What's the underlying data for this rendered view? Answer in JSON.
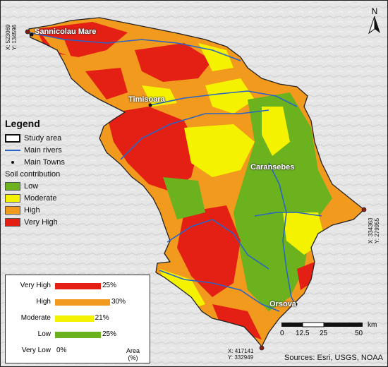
{
  "towns": {
    "sannicolau": "Sannicolau Mare",
    "timisoara": "Timisoara",
    "caransebes": "Caransebes",
    "orsova": "Orsova"
  },
  "coords": {
    "nw_x": "X: 523069",
    "nw_y": "Y: 134596",
    "e_x": "X: 334363",
    "e_y": "Y: 279955",
    "s_x": "X: 417141",
    "s_y": "Y: 332949"
  },
  "north": "N",
  "legend": {
    "title": "Legend",
    "study_area": "Study area",
    "rivers": "Main rivers",
    "towns": "Main Towns",
    "soil_title": "Soil contribution",
    "classes": [
      {
        "label": "Low",
        "color": "#6cb21f"
      },
      {
        "label": "Moderate",
        "color": "#f5f200"
      },
      {
        "label": "High",
        "color": "#f29a1e"
      },
      {
        "label": "Very High",
        "color": "#e41f14"
      }
    ]
  },
  "chart_data": {
    "type": "bar",
    "orientation": "horizontal",
    "categories": [
      "Very High",
      "High",
      "Moderate",
      "Low",
      "Very Low"
    ],
    "values": [
      25,
      30,
      21,
      25,
      0
    ],
    "value_labels": [
      "25%",
      "30%",
      "21%",
      "25%",
      "0%"
    ],
    "colors": [
      "#e41f14",
      "#f29a1e",
      "#f5f200",
      "#6cb21f",
      "#ffffff"
    ],
    "xlabel": "Area\n(%)",
    "xlabel_line1": "Area",
    "xlabel_line2": "(%)"
  },
  "scale": {
    "ticks": [
      "0",
      "12.5",
      "25",
      "50"
    ],
    "unit": "km"
  },
  "sources": "Sources: Esri, USGS, NOAA"
}
